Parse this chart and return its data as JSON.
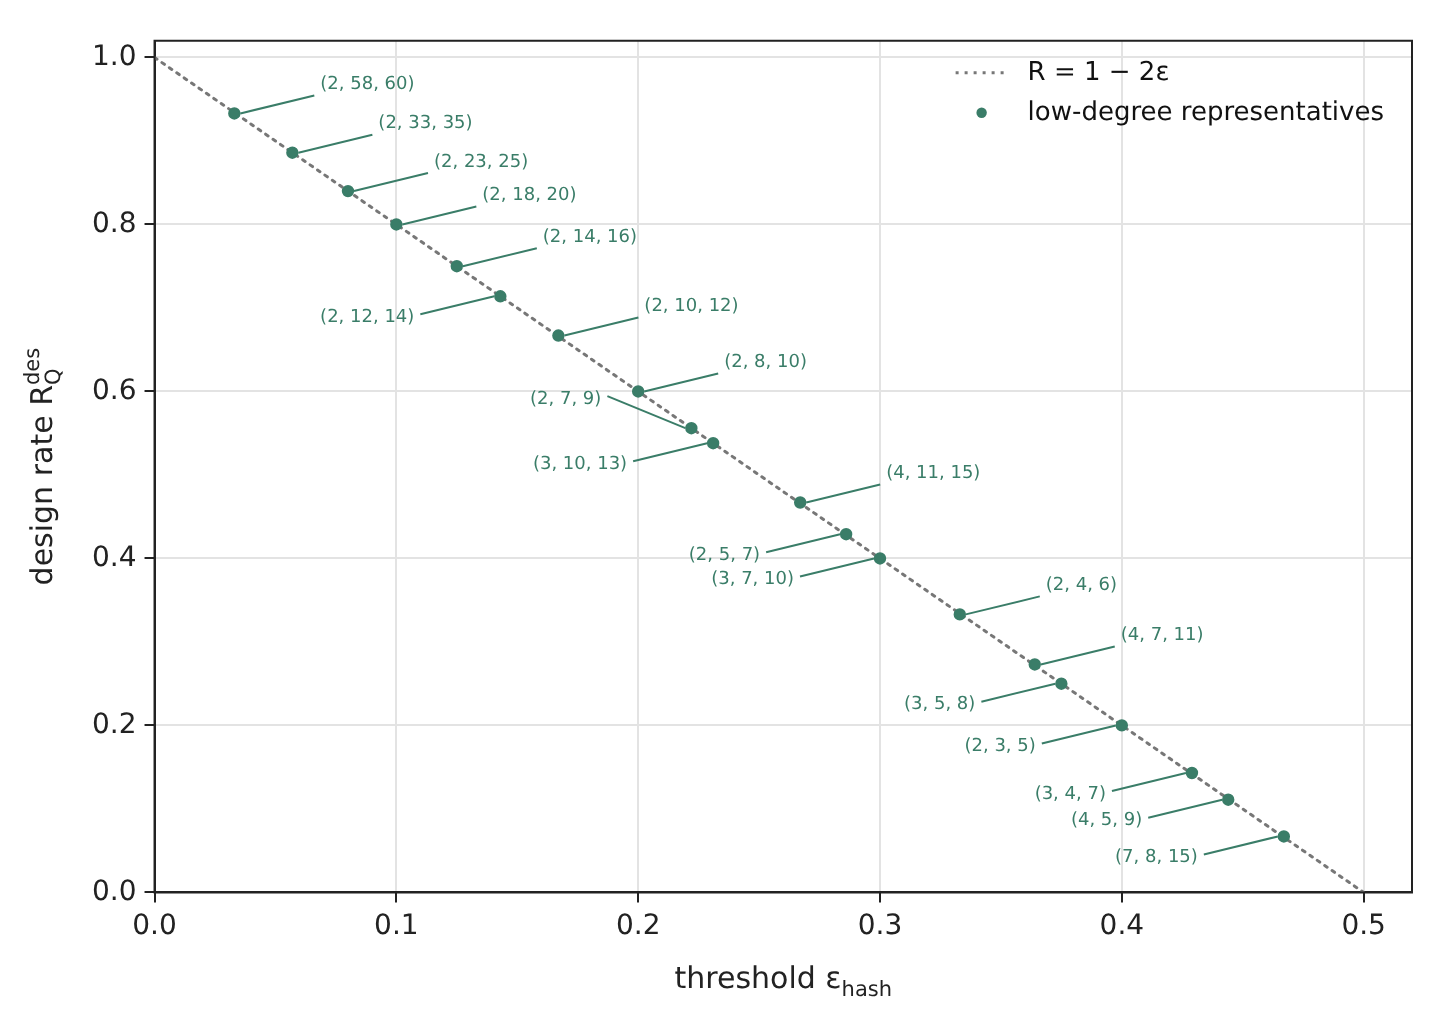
{
  "chart_data": {
    "type": "scatter",
    "xlabel": "threshold ε$_{hash}$",
    "ylabel": "design rate R$_{Q}$$^{des}$",
    "xlim": [
      0,
      0.52
    ],
    "xticks": [
      {
        "value": 0,
        "label": "0.0"
      },
      {
        "value": 0.1,
        "label": "0.1"
      },
      {
        "value": 0.2,
        "label": "0.2"
      },
      {
        "value": 0.3,
        "label": "0.3"
      },
      {
        "value": 0.4,
        "label": "0.4"
      },
      {
        "value": 0.5,
        "label": "0.5"
      }
    ],
    "ylim": [
      0,
      1.02
    ],
    "yticks": [
      {
        "value": 0,
        "label": "0.0"
      },
      {
        "value": 0.2,
        "label": "0.2"
      },
      {
        "value": 0.4,
        "label": "0.4"
      },
      {
        "value": 0.6,
        "label": "0.6"
      },
      {
        "value": 0.8,
        "label": "0.8"
      },
      {
        "value": 1,
        "label": "1.0"
      }
    ],
    "grid": true,
    "legend": "top right",
    "series": [
      {
        "name": "R = 1 − 2ε",
        "type": "line",
        "color": "#777777",
        "line_style": "dotted",
        "marker": "none",
        "x": [
          0,
          0.5
        ],
        "values": [
          1,
          0
        ]
      },
      {
        "name": "low-degree representatives",
        "type": "scatter",
        "color": "#3a7d68",
        "marker": "circle",
        "x": [
          0.033,
          0.057,
          0.08,
          0.1,
          0.125,
          0.143,
          0.167,
          0.2,
          0.222,
          0.231,
          0.267,
          0.286,
          0.3,
          0.333,
          0.364,
          0.375,
          0.4,
          0.429,
          0.444,
          0.467
        ],
        "values": [
          0.933,
          0.886,
          0.84,
          0.8,
          0.75,
          0.714,
          0.667,
          0.6,
          0.556,
          0.538,
          0.467,
          0.429,
          0.4,
          0.333,
          0.273,
          0.25,
          0.2,
          0.143,
          0.111,
          0.067
        ]
      }
    ],
    "annotations": [
      {
        "text": "(2, 58, 60)",
        "x": 0.033,
        "y": 0.933
      },
      {
        "text": "(2, 33, 35)",
        "x": 0.057,
        "y": 0.886
      },
      {
        "text": "(2, 23, 25)",
        "x": 0.08,
        "y": 0.84
      },
      {
        "text": "(2, 18, 20)",
        "x": 0.1,
        "y": 0.8
      },
      {
        "text": "(2, 14, 16)",
        "x": 0.125,
        "y": 0.75
      },
      {
        "text": "(2, 12, 14)",
        "x": 0.143,
        "y": 0.714
      },
      {
        "text": "(2, 10, 12)",
        "x": 0.167,
        "y": 0.667
      },
      {
        "text": "(2, 8, 10)",
        "x": 0.2,
        "y": 0.6
      },
      {
        "text": "(2, 7, 9)",
        "x": 0.222,
        "y": 0.556
      },
      {
        "text": "(3, 10, 13)",
        "x": 0.231,
        "y": 0.538
      },
      {
        "text": "(4, 11, 15)",
        "x": 0.267,
        "y": 0.467
      },
      {
        "text": "(2, 5, 7)",
        "x": 0.286,
        "y": 0.429
      },
      {
        "text": "(3, 7, 10)",
        "x": 0.3,
        "y": 0.4
      },
      {
        "text": "(2, 4, 6)",
        "x": 0.333,
        "y": 0.333
      },
      {
        "text": "(4, 7, 11)",
        "x": 0.364,
        "y": 0.273
      },
      {
        "text": "(3, 5, 8)",
        "x": 0.375,
        "y": 0.25
      },
      {
        "text": "(2, 3, 5)",
        "x": 0.4,
        "y": 0.2
      },
      {
        "text": "(3, 4, 7)",
        "x": 0.429,
        "y": 0.143
      },
      {
        "text": "(4, 5, 9)",
        "x": 0.444,
        "y": 0.111
      },
      {
        "text": "(7, 8, 15)",
        "x": 0.467,
        "y": 0.067
      }
    ]
  }
}
